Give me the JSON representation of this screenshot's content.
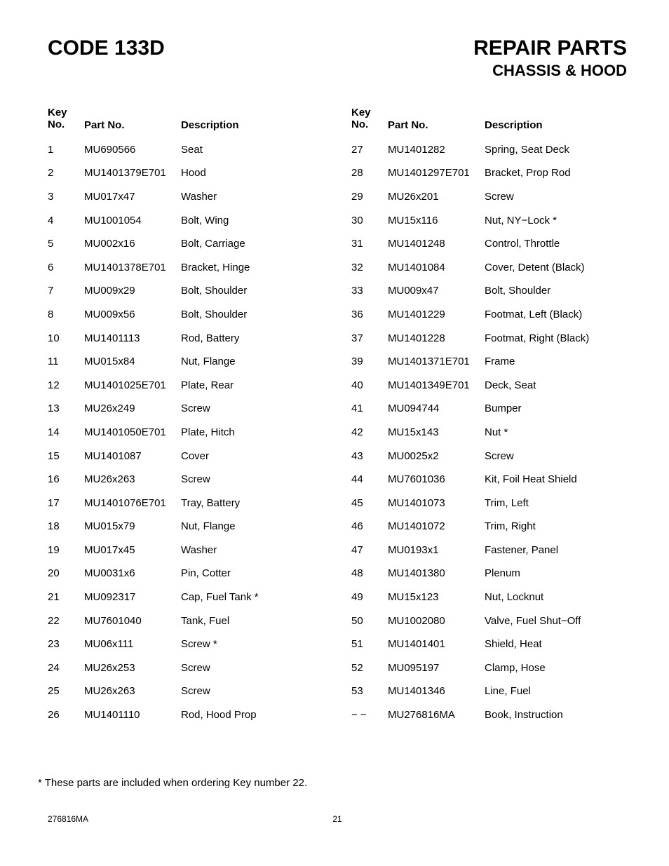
{
  "header": {
    "code_title": "CODE 133D",
    "repair_title": "REPAIR PARTS",
    "section_title": "CHASSIS & HOOD"
  },
  "table_headers": {
    "key_no_line1": "Key",
    "key_no_line2": "No.",
    "part_no": "Part No.",
    "description": "Description"
  },
  "left_rows": [
    {
      "key": "1",
      "part": "MU690566",
      "desc": "Seat"
    },
    {
      "key": "2",
      "part": "MU1401379E701",
      "desc": "Hood"
    },
    {
      "key": "3",
      "part": "MU017x47",
      "desc": "Washer"
    },
    {
      "key": "4",
      "part": "MU1001054",
      "desc": "Bolt, Wing"
    },
    {
      "key": "5",
      "part": "MU002x16",
      "desc": "Bolt, Carriage"
    },
    {
      "key": "6",
      "part": "MU1401378E701",
      "desc": "Bracket, Hinge"
    },
    {
      "key": "7",
      "part": "MU009x29",
      "desc": "Bolt, Shoulder"
    },
    {
      "key": "8",
      "part": "MU009x56",
      "desc": "Bolt, Shoulder"
    },
    {
      "key": "10",
      "part": "MU1401113",
      "desc": "Rod, Battery"
    },
    {
      "key": "11",
      "part": "MU015x84",
      "desc": "Nut, Flange"
    },
    {
      "key": "12",
      "part": "MU1401025E701",
      "desc": "Plate, Rear"
    },
    {
      "key": "13",
      "part": "MU26x249",
      "desc": "Screw"
    },
    {
      "key": "14",
      "part": "MU1401050E701",
      "desc": "Plate, Hitch"
    },
    {
      "key": "15",
      "part": "MU1401087",
      "desc": "Cover"
    },
    {
      "key": "16",
      "part": "MU26x263",
      "desc": "Screw"
    },
    {
      "key": "17",
      "part": "MU1401076E701",
      "desc": "Tray,  Battery"
    },
    {
      "key": "18",
      "part": "MU015x79",
      "desc": "Nut, Flange"
    },
    {
      "key": "19",
      "part": "MU017x45",
      "desc": "Washer"
    },
    {
      "key": "20",
      "part": "MU0031x6",
      "desc": "Pin, Cotter"
    },
    {
      "key": "21",
      "part": "MU092317",
      "desc": "Cap, Fuel Tank *"
    },
    {
      "key": "22",
      "part": "MU7601040",
      "desc": "Tank, Fuel"
    },
    {
      "key": "23",
      "part": "MU06x111",
      "desc": "Screw *"
    },
    {
      "key": "24",
      "part": "MU26x253",
      "desc": "Screw"
    },
    {
      "key": "25",
      "part": "MU26x263",
      "desc": "Screw"
    },
    {
      "key": "26",
      "part": "MU1401110",
      "desc": "Rod, Hood Prop"
    }
  ],
  "right_rows": [
    {
      "key": "27",
      "part": "MU1401282",
      "desc": "Spring, Seat Deck"
    },
    {
      "key": "28",
      "part": "MU1401297E701",
      "desc": "Bracket, Prop Rod"
    },
    {
      "key": "29",
      "part": "MU26x201",
      "desc": "Screw"
    },
    {
      "key": "30",
      "part": "MU15x116",
      "desc": "Nut, NY−Lock *"
    },
    {
      "key": "31",
      "part": "MU1401248",
      "desc": "Control, Throttle"
    },
    {
      "key": "32",
      "part": "MU1401084",
      "desc": "Cover, Detent (Black)"
    },
    {
      "key": "33",
      "part": "MU009x47",
      "desc": "Bolt, Shoulder"
    },
    {
      "key": "36",
      "part": "MU1401229",
      "desc": "Footmat, Left (Black)"
    },
    {
      "key": "37",
      "part": "MU1401228",
      "desc": "Footmat, Right (Black)"
    },
    {
      "key": "39",
      "part": "MU1401371E701",
      "desc": "Frame"
    },
    {
      "key": "40",
      "part": "MU1401349E701",
      "desc": "Deck, Seat"
    },
    {
      "key": "41",
      "part": "MU094744",
      "desc": "Bumper"
    },
    {
      "key": "42",
      "part": "MU15x143",
      "desc": "Nut *"
    },
    {
      "key": "43",
      "part": "MU0025x2",
      "desc": "Screw"
    },
    {
      "key": "44",
      "part": "MU7601036",
      "desc": "Kit, Foil Heat Shield"
    },
    {
      "key": "45",
      "part": "MU1401073",
      "desc": "Trim, Left"
    },
    {
      "key": "46",
      "part": "MU1401072",
      "desc": "Trim, Right"
    },
    {
      "key": "47",
      "part": "MU0193x1",
      "desc": "Fastener, Panel"
    },
    {
      "key": "48",
      "part": "MU1401380",
      "desc": "Plenum"
    },
    {
      "key": "49",
      "part": "MU15x123",
      "desc": "Nut, Locknut"
    },
    {
      "key": "50",
      "part": "MU1002080",
      "desc": "Valve, Fuel Shut−Off"
    },
    {
      "key": "51",
      "part": "MU1401401",
      "desc": "Shield, Heat"
    },
    {
      "key": "52",
      "part": "MU095197",
      "desc": "Clamp, Hose"
    },
    {
      "key": "53",
      "part": "MU1401346",
      "desc": "Line, Fuel"
    },
    {
      "key": "− −",
      "part": "MU276816MA",
      "desc": "Book, Instruction"
    }
  ],
  "footnote": "*  These parts are included when ordering Key number 22.",
  "footer": {
    "doc_no": "276816MA",
    "page_no": "21"
  }
}
